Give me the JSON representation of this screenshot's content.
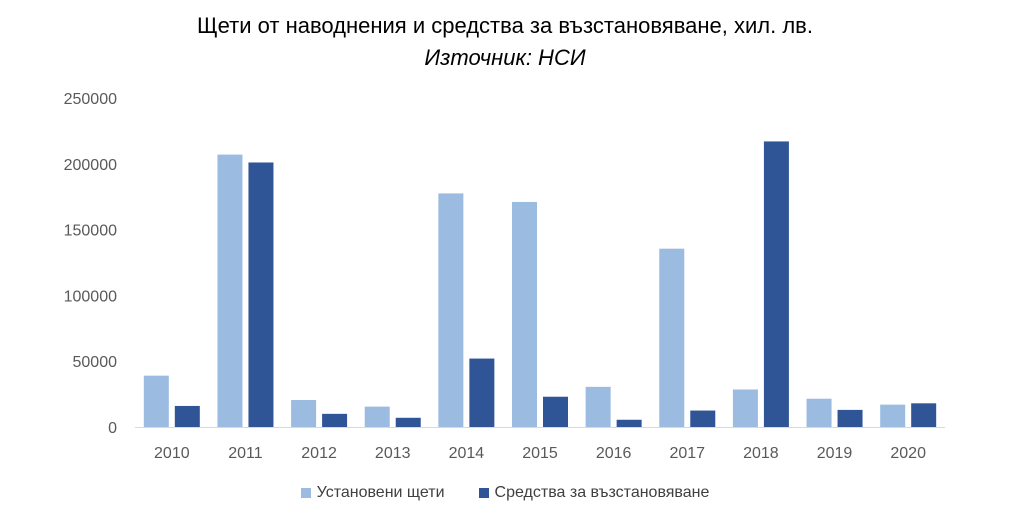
{
  "chart_data": {
    "type": "bar",
    "title": "Щети от наводнения и средства за възстановяване, хил. лв.",
    "subtitle": "Източник: НСИ",
    "categories": [
      "2010",
      "2011",
      "2012",
      "2013",
      "2014",
      "2015",
      "2016",
      "2017",
      "2018",
      "2019",
      "2020"
    ],
    "series": [
      {
        "name": "Установени щети",
        "color": "#9BBBE0",
        "values": [
          39000,
          207000,
          20500,
          15500,
          177500,
          171000,
          30500,
          135500,
          28500,
          21500,
          17000
        ]
      },
      {
        "name": "Средства за възстановяване",
        "color": "#2F5597",
        "values": [
          16000,
          201000,
          10000,
          7000,
          52000,
          23000,
          5500,
          12500,
          217000,
          13000,
          18000
        ]
      }
    ],
    "ylim": [
      0,
      250000
    ],
    "yticks": [
      0,
      50000,
      100000,
      150000,
      200000,
      250000
    ],
    "grid": false,
    "legend": "bottom"
  }
}
